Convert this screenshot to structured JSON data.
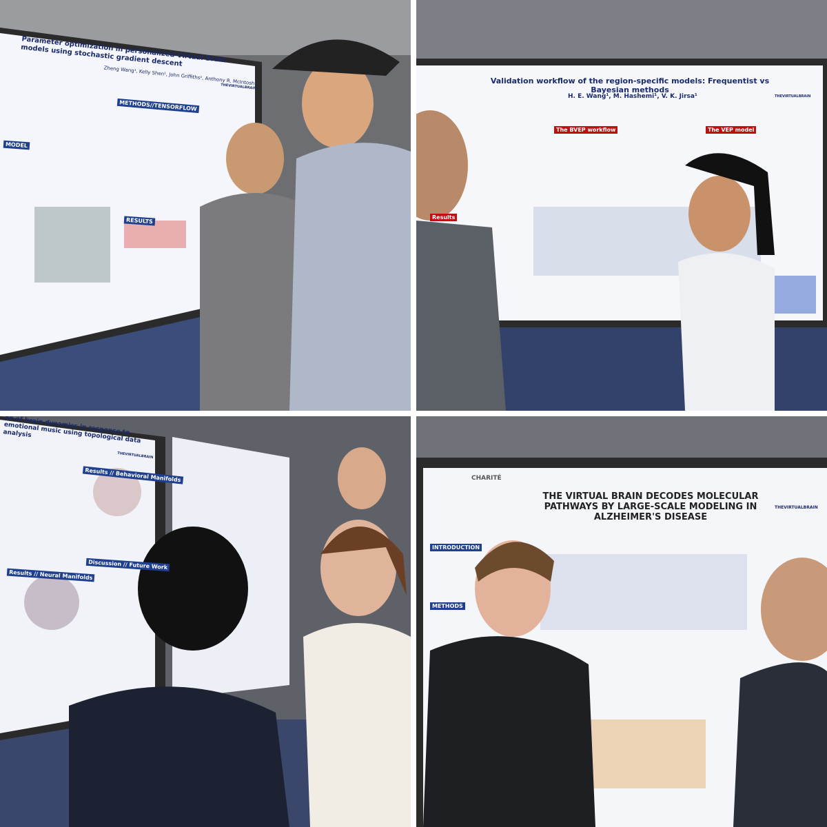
{
  "panels": [
    {
      "poster_title": "Parameter optimization in personalized Virtual Brain models using stochastic gradient descent",
      "authors": "Zheng Wang¹, Kelly Shen¹, John Griffiths¹, Anthony R. McIntosh¹",
      "sections": [
        "MODEL",
        "METHODS//TENSORFLOW",
        "RESULTS"
      ],
      "logo": "THEVIRTUALBRAIN"
    },
    {
      "poster_title": "Validation workflow of the region-specific models: Frequentist vs Bayesian methods",
      "authors": "H. E. Wang¹, M. Hashemi¹, V. K. Jirsa¹",
      "sections": [
        "The BVEP workflow",
        "The VEP model",
        "Results"
      ],
      "logo": "THEVIRTUALBRAIN"
    },
    {
      "poster_title": "on of brain dynamics in response to emotional music using topological data analysis",
      "sections": [
        "Results // Behavioral Manifolds",
        "Results // Neural Manifolds",
        "Discussion // Future Work"
      ],
      "logo": "THEVIRTUALBRAIN"
    },
    {
      "poster_title": "THE VIRTUAL BRAIN DECODES MOLECULAR PATHWAYS BY LARGE-SCALE MODELING IN ALZHEIMER'S DISEASE",
      "institution": "CHARITÉ",
      "sections": [
        "INTRODUCTION",
        "METHODS"
      ],
      "logo": "THEVIRTUALBRAIN"
    }
  ]
}
